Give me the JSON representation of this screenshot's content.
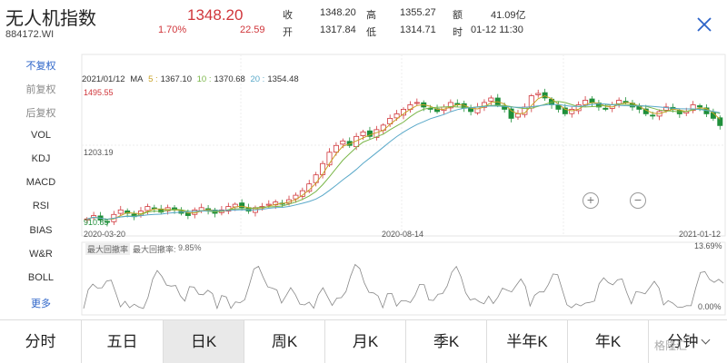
{
  "header": {
    "name": "无人机指数",
    "code": "884172.WI",
    "price": "1348.20",
    "change_pct": "1.70%",
    "change": "22.59",
    "quote": {
      "shou_label": "收",
      "shou_value": "1348.20",
      "kai_label": "开",
      "kai_value": "1317.84",
      "gao_label": "高",
      "gao_value": "1355.27",
      "di_label": "低",
      "di_value": "1314.71",
      "e_label": "额",
      "e_value": "41.09亿",
      "time_label": "时",
      "time_value": "01-12 11:30"
    }
  },
  "side_menu": [
    {
      "label": "不复权",
      "state": "active"
    },
    {
      "label": "前复权",
      "state": "dim"
    },
    {
      "label": "后复权",
      "state": "dim"
    },
    {
      "label": "VOL",
      "state": "normal"
    },
    {
      "label": "KDJ",
      "state": "normal"
    },
    {
      "label": "MACD",
      "state": "normal"
    },
    {
      "label": "RSI",
      "state": "normal"
    },
    {
      "label": "BIAS",
      "state": "normal"
    },
    {
      "label": "W&R",
      "state": "normal"
    },
    {
      "label": "BOLL",
      "state": "normal"
    },
    {
      "label": "更多",
      "state": "more"
    }
  ],
  "ma_legend": {
    "date": "2021/01/12",
    "ma": "MA",
    "ma5_label": "5 :",
    "ma5_value": "1367.10",
    "ma10_label": "10 :",
    "ma10_value": "1370.68",
    "ma20_label": "20 :",
    "ma20_value": "1354.48"
  },
  "chart_labels": {
    "high_price": "1495.55",
    "mid_price": "1203.19",
    "low_price": "910.85",
    "date_start": "2020-03-20",
    "date_mid": "2020-08-14",
    "date_end": "2021-01-12",
    "drawdown_label": "最大回撤率",
    "drawdown_label2": "最大回撤率:",
    "drawdown_value": "9.85%",
    "sub_high": "13.69%",
    "sub_low": "0.00%"
  },
  "colors": {
    "up": "#d0363b",
    "down": "#1f8f3a",
    "ma5": "#c9a227",
    "ma10": "#7ab648",
    "ma20": "#5aa9c9",
    "accent": "#2b63c8"
  },
  "tabs": [
    {
      "label": "分时",
      "active": false
    },
    {
      "label": "五日",
      "active": false
    },
    {
      "label": "日K",
      "active": true
    },
    {
      "label": "周K",
      "active": false
    },
    {
      "label": "月K",
      "active": false
    },
    {
      "label": "季K",
      "active": false
    },
    {
      "label": "半年K",
      "active": false
    },
    {
      "label": "年K",
      "active": false
    },
    {
      "label": "分钟",
      "active": false
    }
  ],
  "watermark": "格隆汇",
  "chart_data": {
    "type": "candlestick",
    "x_start": "2020-03-20",
    "x_mid": "2020-08-14",
    "x_end": "2021-01-12",
    "y_marked_high": 1495.55,
    "y_marked_mid": 1203.19,
    "y_marked_low": 910.85,
    "close_series_approx": [
      935,
      950,
      930,
      920,
      955,
      975,
      960,
      945,
      970,
      990,
      980,
      965,
      985,
      975,
      960,
      950,
      975,
      985,
      970,
      960,
      975,
      990,
      1000,
      985,
      970,
      985,
      990,
      1000,
      1010,
      1000,
      1020,
      1040,
      1060,
      1090,
      1130,
      1180,
      1230,
      1260,
      1280,
      1260,
      1300,
      1320,
      1300,
      1330,
      1350,
      1380,
      1400,
      1420,
      1440,
      1450,
      1430,
      1420,
      1410,
      1430,
      1450,
      1440,
      1425,
      1410,
      1430,
      1450,
      1470,
      1440,
      1420,
      1380,
      1400,
      1430,
      1480,
      1490,
      1470,
      1440,
      1420,
      1400,
      1420,
      1440,
      1460,
      1450,
      1430,
      1420,
      1440,
      1460,
      1450,
      1430,
      1420,
      1400,
      1390,
      1410,
      1430,
      1420,
      1400,
      1410,
      1440,
      1430,
      1400,
      1380,
      1348
    ]
  }
}
